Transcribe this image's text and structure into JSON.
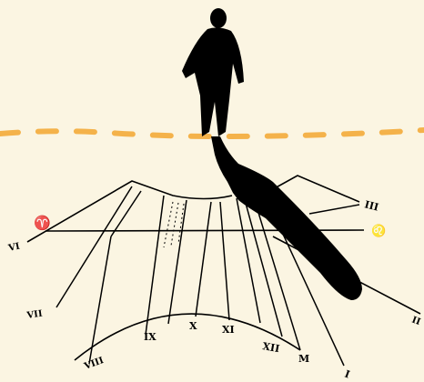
{
  "colors": {
    "background": "#fbf5e2",
    "ink": "#000000",
    "dash_line": "#f4b24a",
    "shadow": "#000000"
  },
  "dial": {
    "hour_labels": {
      "vi": "VI",
      "vii": "VII",
      "viii": "VIII",
      "ix": "IX",
      "x": "X",
      "xi": "XI",
      "xii": "XII",
      "i": "I",
      "ii": "II",
      "iii": "III"
    },
    "signs": {
      "aries": "♈",
      "leo": "♌",
      "m_label": "M"
    }
  },
  "figures": {
    "person": "walking-person-silhouette",
    "shadow": "cast-shadow-silhouette"
  }
}
